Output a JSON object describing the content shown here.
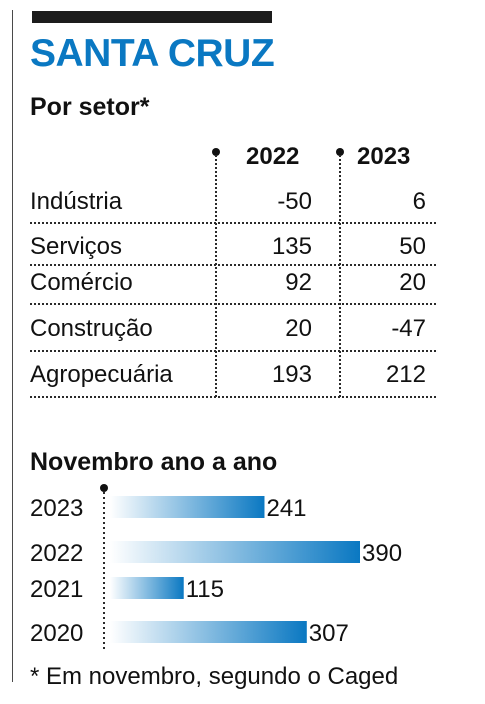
{
  "title": "SANTA CRUZ",
  "sector_table": {
    "heading": "Por setor*",
    "columns": [
      "2022",
      "2023"
    ],
    "rows": [
      {
        "label": "Indústria",
        "values": [
          "-50",
          "6"
        ]
      },
      {
        "label": "Serviços",
        "values": [
          "135",
          "50"
        ]
      },
      {
        "label": "Comércio",
        "values": [
          "92",
          "20"
        ]
      },
      {
        "label": "Construção",
        "values": [
          "20",
          "-47"
        ]
      },
      {
        "label": "Agropecuária",
        "values": [
          "193",
          "212"
        ]
      }
    ]
  },
  "chart_data": {
    "type": "bar",
    "orientation": "horizontal",
    "title": "Novembro ano a ano",
    "categories": [
      "2023",
      "2022",
      "2021",
      "2020"
    ],
    "values": [
      241,
      390,
      115,
      307
    ],
    "data_labels": [
      "241",
      "390",
      "115",
      "307"
    ],
    "xlim": [
      0,
      390
    ],
    "grid": false,
    "colors": {
      "bar_start": "#ffffff",
      "bar_end": "#0a78c2"
    }
  },
  "footnote": "* Em novembro, segundo o Caged",
  "colors": {
    "accent": "#0a78c2",
    "text": "#111111"
  }
}
